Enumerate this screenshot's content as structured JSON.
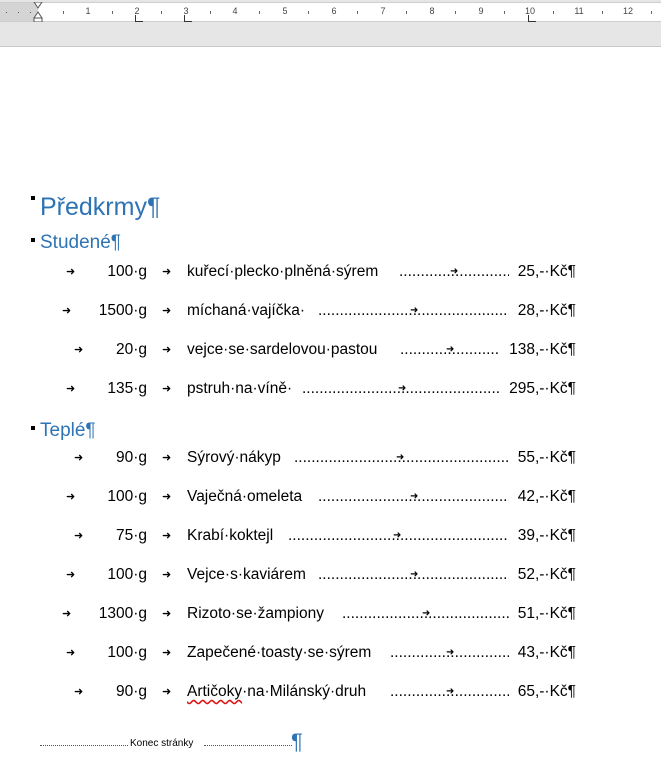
{
  "ruler": {
    "numbers": [
      "1",
      "2",
      "3",
      "4",
      "5",
      "6",
      "7",
      "8",
      "9",
      "10",
      "11",
      "12"
    ]
  },
  "document": {
    "heading": "Předkrmy¶",
    "sections": [
      {
        "title": "Studené¶",
        "rows": [
          {
            "qty": "100·g",
            "item": "kuřecí·plecko·plněná·sýrem",
            "price": "25,-·Kč¶"
          },
          {
            "qty": "1500·g",
            "item": "míchaná·vajíčka·",
            "price": "28,-·Kč¶"
          },
          {
            "qty": "20·g",
            "item": "vejce·se·sardelovou·pastou",
            "price": "138,-·Kč¶"
          },
          {
            "qty": "135·g",
            "item": "pstruh·na·víně·",
            "price": "295,-·Kč¶"
          }
        ]
      },
      {
        "title": "Teplé¶",
        "rows": [
          {
            "qty": "90·g",
            "item": "Sýrový·nákyp",
            "price": "55,-·Kč¶"
          },
          {
            "qty": "100·g",
            "item": "Vaječná·omeleta",
            "price": "42,-·Kč¶"
          },
          {
            "qty": "75·g",
            "item": "Krabí·koktejl",
            "price": "39,-·Kč¶"
          },
          {
            "qty": "100·g",
            "item": "Vejce·s·kaviárem",
            "price": "52,-·Kč¶"
          },
          {
            "qty": "1300·g",
            "item": "Rizoto·se·žampiony",
            "price": "51,-·Kč¶"
          },
          {
            "qty": "100·g",
            "item": "Zapečené·toasty·se·sýrem",
            "price": "43,-·Kč¶"
          },
          {
            "qty": "90·g",
            "item_misspelled": "Artičoky",
            "item_rest": "·na·Milánský·druh",
            "price": "65,-·Kč¶"
          }
        ]
      }
    ],
    "page_break_label": "Konec stránky",
    "page_break_pilcrow": "¶"
  },
  "colors": {
    "heading": "#2e74b5",
    "ruler_bg": "#e6e6e6",
    "spell_error": "#d11"
  }
}
